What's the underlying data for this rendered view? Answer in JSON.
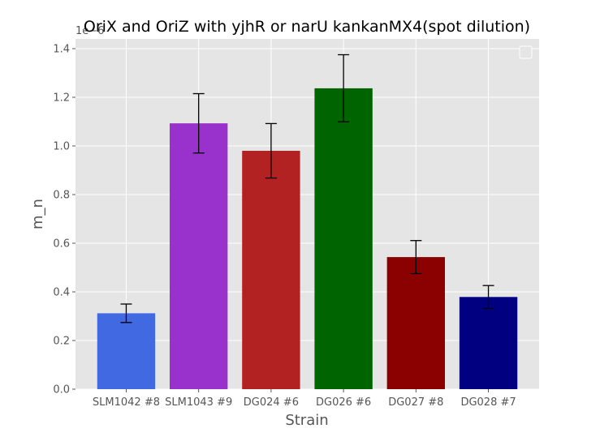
{
  "chart_data": {
    "type": "bar",
    "title": "OriX and OriZ with yjhR or narU kankanMX4(spot dilution)",
    "xlabel": "Strain",
    "ylabel": "m_n",
    "y_offset_label": "1e−6",
    "categories": [
      "SLM1042 #8",
      "SLM1043 #9",
      "DG024 #6",
      "DG026 #6",
      "DG027 #8",
      "DG028 #7"
    ],
    "values": [
      0.312,
      1.093,
      0.98,
      1.237,
      0.543,
      0.379
    ],
    "errors": [
      0.038,
      0.122,
      0.112,
      0.138,
      0.068,
      0.047
    ],
    "colors": [
      "#4169e1",
      "#9932cc",
      "#b22222",
      "#006400",
      "#8b0000",
      "#000080"
    ],
    "yticks": [
      "0.0",
      "0.2",
      "0.4",
      "0.6",
      "0.8",
      "1.0",
      "1.2",
      "1.4"
    ],
    "ylim": [
      0,
      1.44
    ],
    "grid": true,
    "legend": "top-right (empty)"
  }
}
